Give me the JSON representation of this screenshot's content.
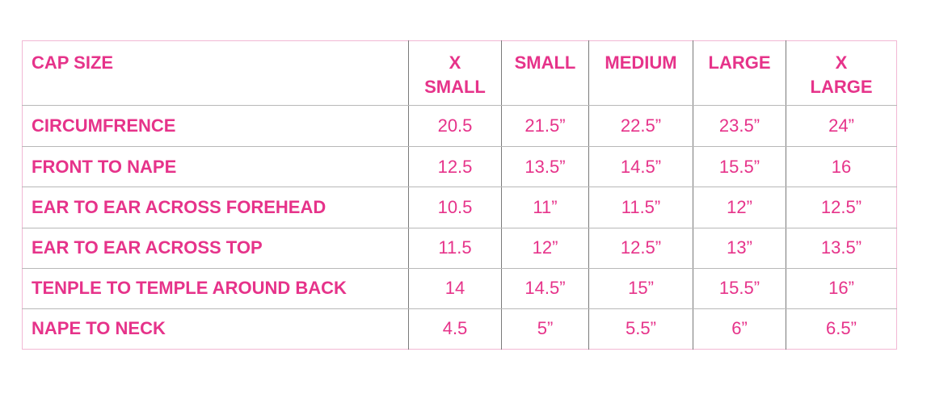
{
  "table": {
    "corner_label": "CAP SIZE",
    "sizes": [
      {
        "line1": "X",
        "line2": "SMALL"
      },
      {
        "line1": "SMALL",
        "line2": ""
      },
      {
        "line1": "MEDIUM",
        "line2": ""
      },
      {
        "line1": "LARGE",
        "line2": ""
      },
      {
        "line1": "X",
        "line2": "LARGE"
      }
    ],
    "rows": [
      {
        "label": "CIRCUMFRENCE",
        "values": [
          "20.5",
          "21.5”",
          "22.5”",
          "23.5”",
          "24”"
        ]
      },
      {
        "label": "FRONT TO NAPE",
        "values": [
          "12.5",
          "13.5”",
          "14.5”",
          "15.5”",
          "16"
        ]
      },
      {
        "label": "EAR TO EAR ACROSS FOREHEAD",
        "values": [
          "10.5",
          "11”",
          "11.5”",
          "12”",
          "12.5”"
        ]
      },
      {
        "label": "EAR TO EAR ACROSS TOP",
        "values": [
          "11.5",
          "12”",
          "12.5”",
          "13”",
          "13.5”"
        ]
      },
      {
        "label": "TENPLE TO TEMPLE AROUND BACK",
        "values": [
          "14",
          "14.5”",
          "15”",
          "15.5”",
          "16”"
        ]
      },
      {
        "label": "NAPE TO NECK",
        "values": [
          "4.5",
          "5”",
          "5.5”",
          "6”",
          "6.5”"
        ]
      }
    ]
  },
  "colors": {
    "text_pink": "#e6338a",
    "outer_border": "#f2b8d4",
    "grid_line": "#7a7a7a"
  }
}
